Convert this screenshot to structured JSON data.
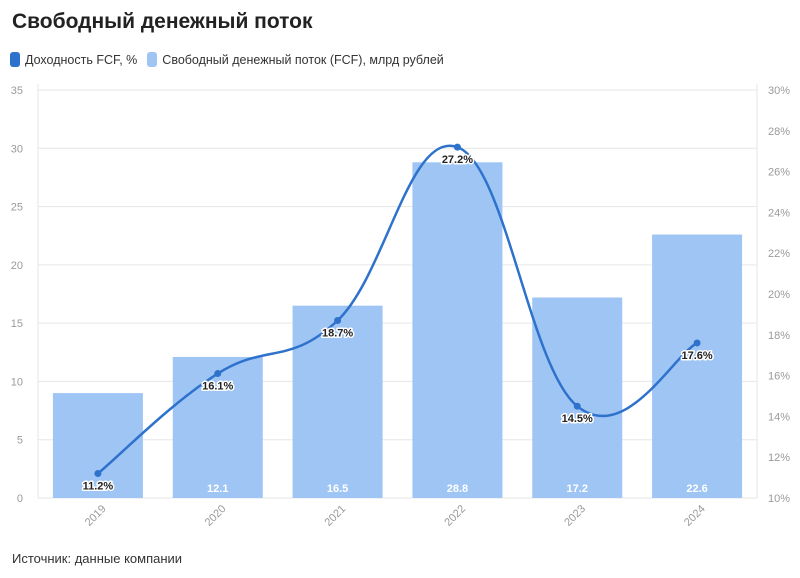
{
  "colors": {
    "bar": "#9fc5f5",
    "line": "#2f72cc",
    "grid": "#e6e6e6"
  },
  "source_note": "Источник: данные компании",
  "chart_data": {
    "type": "bar",
    "title": "Свободный денежный поток",
    "categories": [
      "2019",
      "2020",
      "2021",
      "2022",
      "2023",
      "2024"
    ],
    "series": [
      {
        "name": "Свободный денежный поток (FCF), млрд рублей",
        "type": "bar",
        "axis": "left",
        "values": [
          9.0,
          12.1,
          16.5,
          28.8,
          17.2,
          22.6
        ],
        "labels": [
          "",
          "12.1",
          "16.5",
          "28.8",
          "17.2",
          "22.6"
        ]
      },
      {
        "name": "Доходность FCF, %",
        "type": "line",
        "axis": "right",
        "values": [
          11.2,
          16.1,
          18.7,
          27.2,
          14.5,
          17.6
        ],
        "labels": [
          "11.2%",
          "16.1%",
          "18.7%",
          "27.2%",
          "14.5%",
          "17.6%"
        ]
      }
    ],
    "legend_order": [
      "Доходность FCF, %",
      "Свободный денежный поток (FCF), млрд рублей"
    ],
    "legend_position": "top-left",
    "y_left": {
      "ylim": [
        0,
        35
      ],
      "ticks": [
        "0",
        "5",
        "10",
        "15",
        "20",
        "25",
        "30",
        "35"
      ]
    },
    "y_right": {
      "ylim": [
        10,
        30
      ],
      "ticks": [
        "10%",
        "12%",
        "14%",
        "16%",
        "18%",
        "20%",
        "22%",
        "24%",
        "26%",
        "28%",
        "30%"
      ]
    },
    "grid": "horizontal"
  }
}
